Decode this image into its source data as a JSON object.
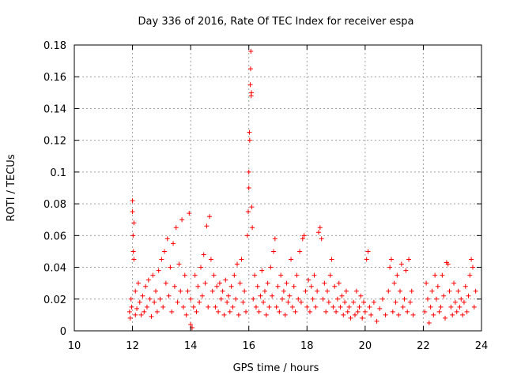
{
  "chart_data": {
    "type": "scatter",
    "title": "Day 336 of 2016, Rate Of TEC Index for receiver espa",
    "xlabel": "GPS time / hours",
    "ylabel": "ROTI / TECUs",
    "xlim": [
      10,
      24
    ],
    "ylim": [
      0,
      0.18
    ],
    "xticks": [
      10,
      12,
      14,
      16,
      18,
      20,
      22,
      24
    ],
    "xtick_labels": [
      "10",
      "12",
      "14",
      "16",
      "18",
      "20",
      "22",
      "24"
    ],
    "yticks": [
      0,
      0.02,
      0.04,
      0.06,
      0.08,
      0.1,
      0.12,
      0.14,
      0.16,
      0.18
    ],
    "ytick_labels": [
      "0",
      "0.02",
      "0.04",
      "0.06",
      "0.08",
      "0.1",
      "0.12",
      "0.14",
      "0.16",
      "0.18"
    ],
    "grid": true,
    "marker": "+",
    "color": "#ff0000",
    "series": [
      {
        "name": "ROTI",
        "points": [
          [
            11.9,
            0.012
          ],
          [
            11.92,
            0.008
          ],
          [
            11.95,
            0.02
          ],
          [
            11.97,
            0.015
          ],
          [
            12.0,
            0.075
          ],
          [
            12.0,
            0.082
          ],
          [
            12.02,
            0.06
          ],
          [
            12.03,
            0.05
          ],
          [
            12.05,
            0.045
          ],
          [
            12.05,
            0.068
          ],
          [
            12.1,
            0.01
          ],
          [
            12.1,
            0.025
          ],
          [
            12.15,
            0.014
          ],
          [
            12.2,
            0.03
          ],
          [
            12.25,
            0.018
          ],
          [
            12.3,
            0.01
          ],
          [
            12.35,
            0.022
          ],
          [
            12.4,
            0.012
          ],
          [
            12.45,
            0.028
          ],
          [
            12.5,
            0.015
          ],
          [
            12.55,
            0.032
          ],
          [
            12.6,
            0.02
          ],
          [
            12.65,
            0.009
          ],
          [
            12.7,
            0.035
          ],
          [
            12.75,
            0.018
          ],
          [
            12.8,
            0.025
          ],
          [
            12.85,
            0.012
          ],
          [
            12.9,
            0.038
          ],
          [
            12.95,
            0.02
          ],
          [
            13.0,
            0.045
          ],
          [
            13.05,
            0.015
          ],
          [
            13.1,
            0.05
          ],
          [
            13.15,
            0.03
          ],
          [
            13.2,
            0.058
          ],
          [
            13.25,
            0.022
          ],
          [
            13.3,
            0.04
          ],
          [
            13.35,
            0.012
          ],
          [
            13.4,
            0.055
          ],
          [
            13.45,
            0.028
          ],
          [
            13.5,
            0.065
          ],
          [
            13.55,
            0.018
          ],
          [
            13.6,
            0.042
          ],
          [
            13.65,
            0.025
          ],
          [
            13.7,
            0.07
          ],
          [
            13.75,
            0.015
          ],
          [
            13.8,
            0.035
          ],
          [
            13.85,
            0.01
          ],
          [
            13.9,
            0.025
          ],
          [
            13.95,
            0.074
          ],
          [
            14.0,
            0.004
          ],
          [
            14.0,
            0.02
          ],
          [
            14.05,
            0.002
          ],
          [
            14.1,
            0.015
          ],
          [
            14.15,
            0.035
          ],
          [
            14.2,
            0.012
          ],
          [
            14.25,
            0.028
          ],
          [
            14.3,
            0.018
          ],
          [
            14.35,
            0.04
          ],
          [
            14.4,
            0.022
          ],
          [
            14.45,
            0.048
          ],
          [
            14.5,
            0.03
          ],
          [
            14.55,
            0.066
          ],
          [
            14.6,
            0.015
          ],
          [
            14.65,
            0.072
          ],
          [
            14.7,
            0.045
          ],
          [
            14.75,
            0.025
          ],
          [
            14.8,
            0.035
          ],
          [
            14.85,
            0.015
          ],
          [
            14.9,
            0.028
          ],
          [
            14.95,
            0.012
          ],
          [
            15.0,
            0.03
          ],
          [
            15.05,
            0.02
          ],
          [
            15.1,
            0.025
          ],
          [
            15.15,
            0.01
          ],
          [
            15.2,
            0.032
          ],
          [
            15.25,
            0.018
          ],
          [
            15.3,
            0.022
          ],
          [
            15.35,
            0.012
          ],
          [
            15.4,
            0.028
          ],
          [
            15.45,
            0.015
          ],
          [
            15.5,
            0.035
          ],
          [
            15.55,
            0.02
          ],
          [
            15.6,
            0.042
          ],
          [
            15.65,
            0.01
          ],
          [
            15.7,
            0.03
          ],
          [
            15.75,
            0.045
          ],
          [
            15.8,
            0.018
          ],
          [
            15.85,
            0.025
          ],
          [
            15.9,
            0.012
          ],
          [
            15.95,
            0.06
          ],
          [
            15.98,
            0.075
          ],
          [
            16.0,
            0.09
          ],
          [
            16.0,
            0.1
          ],
          [
            16.02,
            0.125
          ],
          [
            16.03,
            0.12
          ],
          [
            16.05,
            0.155
          ],
          [
            16.06,
            0.165
          ],
          [
            16.07,
            0.176
          ],
          [
            16.08,
            0.148
          ],
          [
            16.09,
            0.15
          ],
          [
            16.1,
            0.078
          ],
          [
            16.12,
            0.065
          ],
          [
            16.15,
            0.02
          ],
          [
            16.2,
            0.035
          ],
          [
            16.25,
            0.015
          ],
          [
            16.3,
            0.028
          ],
          [
            16.35,
            0.012
          ],
          [
            16.4,
            0.022
          ],
          [
            16.45,
            0.038
          ],
          [
            16.5,
            0.018
          ],
          [
            16.55,
            0.025
          ],
          [
            16.6,
            0.01
          ],
          [
            16.65,
            0.03
          ],
          [
            16.7,
            0.015
          ],
          [
            16.75,
            0.04
          ],
          [
            16.8,
            0.022
          ],
          [
            16.85,
            0.05
          ],
          [
            16.9,
            0.058
          ],
          [
            16.95,
            0.015
          ],
          [
            17.0,
            0.028
          ],
          [
            17.05,
            0.012
          ],
          [
            17.1,
            0.035
          ],
          [
            17.15,
            0.02
          ],
          [
            17.2,
            0.025
          ],
          [
            17.25,
            0.01
          ],
          [
            17.3,
            0.03
          ],
          [
            17.35,
            0.018
          ],
          [
            17.4,
            0.022
          ],
          [
            17.45,
            0.045
          ],
          [
            17.5,
            0.015
          ],
          [
            17.55,
            0.028
          ],
          [
            17.6,
            0.012
          ],
          [
            17.65,
            0.035
          ],
          [
            17.7,
            0.02
          ],
          [
            17.75,
            0.05
          ],
          [
            17.8,
            0.018
          ],
          [
            17.85,
            0.058
          ],
          [
            17.9,
            0.06
          ],
          [
            17.95,
            0.025
          ],
          [
            18.0,
            0.015
          ],
          [
            18.05,
            0.032
          ],
          [
            18.1,
            0.012
          ],
          [
            18.15,
            0.028
          ],
          [
            18.2,
            0.02
          ],
          [
            18.25,
            0.035
          ],
          [
            18.3,
            0.015
          ],
          [
            18.35,
            0.025
          ],
          [
            18.4,
            0.062
          ],
          [
            18.45,
            0.065
          ],
          [
            18.5,
            0.058
          ],
          [
            18.55,
            0.02
          ],
          [
            18.6,
            0.03
          ],
          [
            18.65,
            0.012
          ],
          [
            18.7,
            0.025
          ],
          [
            18.75,
            0.018
          ],
          [
            18.8,
            0.035
          ],
          [
            18.85,
            0.045
          ],
          [
            18.9,
            0.015
          ],
          [
            18.95,
            0.028
          ],
          [
            19.0,
            0.012
          ],
          [
            19.05,
            0.02
          ],
          [
            19.1,
            0.03
          ],
          [
            19.15,
            0.015
          ],
          [
            19.2,
            0.022
          ],
          [
            19.25,
            0.01
          ],
          [
            19.3,
            0.018
          ],
          [
            19.35,
            0.025
          ],
          [
            19.4,
            0.012
          ],
          [
            19.45,
            0.015
          ],
          [
            19.5,
            0.008
          ],
          [
            19.6,
            0.018
          ],
          [
            19.65,
            0.01
          ],
          [
            19.7,
            0.025
          ],
          [
            19.75,
            0.012
          ],
          [
            19.8,
            0.015
          ],
          [
            19.85,
            0.022
          ],
          [
            19.9,
            0.008
          ],
          [
            19.95,
            0.018
          ],
          [
            20.0,
            0.012
          ],
          [
            20.05,
            0.045
          ],
          [
            20.1,
            0.05
          ],
          [
            20.15,
            0.015
          ],
          [
            20.2,
            0.01
          ],
          [
            20.3,
            0.018
          ],
          [
            20.4,
            0.006
          ],
          [
            20.5,
            0.014
          ],
          [
            20.6,
            0.02
          ],
          [
            20.7,
            0.01
          ],
          [
            20.8,
            0.025
          ],
          [
            20.85,
            0.04
          ],
          [
            20.9,
            0.045
          ],
          [
            20.95,
            0.012
          ],
          [
            21.0,
            0.03
          ],
          [
            21.05,
            0.018
          ],
          [
            21.1,
            0.035
          ],
          [
            21.15,
            0.01
          ],
          [
            21.2,
            0.025
          ],
          [
            21.25,
            0.042
          ],
          [
            21.3,
            0.015
          ],
          [
            21.35,
            0.02
          ],
          [
            21.4,
            0.038
          ],
          [
            21.45,
            0.012
          ],
          [
            21.5,
            0.045
          ],
          [
            21.55,
            0.018
          ],
          [
            21.6,
            0.025
          ],
          [
            21.65,
            0.01
          ],
          [
            22.05,
            0.012
          ],
          [
            22.1,
            0.03
          ],
          [
            22.15,
            0.02
          ],
          [
            22.2,
            0.005
          ],
          [
            22.25,
            0.015
          ],
          [
            22.3,
            0.025
          ],
          [
            22.35,
            0.01
          ],
          [
            22.4,
            0.035
          ],
          [
            22.45,
            0.02
          ],
          [
            22.5,
            0.028
          ],
          [
            22.55,
            0.012
          ],
          [
            22.6,
            0.015
          ],
          [
            22.65,
            0.035
          ],
          [
            22.7,
            0.022
          ],
          [
            22.75,
            0.008
          ],
          [
            22.8,
            0.043
          ],
          [
            22.85,
            0.042
          ],
          [
            22.9,
            0.025
          ],
          [
            22.95,
            0.015
          ],
          [
            23.0,
            0.01
          ],
          [
            23.05,
            0.03
          ],
          [
            23.1,
            0.018
          ],
          [
            23.15,
            0.012
          ],
          [
            23.2,
            0.025
          ],
          [
            23.25,
            0.015
          ],
          [
            23.3,
            0.02
          ],
          [
            23.35,
            0.01
          ],
          [
            23.4,
            0.018
          ],
          [
            23.45,
            0.028
          ],
          [
            23.5,
            0.012
          ],
          [
            23.55,
            0.022
          ],
          [
            23.6,
            0.035
          ],
          [
            23.65,
            0.045
          ],
          [
            23.7,
            0.04
          ],
          [
            23.75,
            0.015
          ],
          [
            23.8,
            0.025
          ]
        ]
      }
    ]
  }
}
